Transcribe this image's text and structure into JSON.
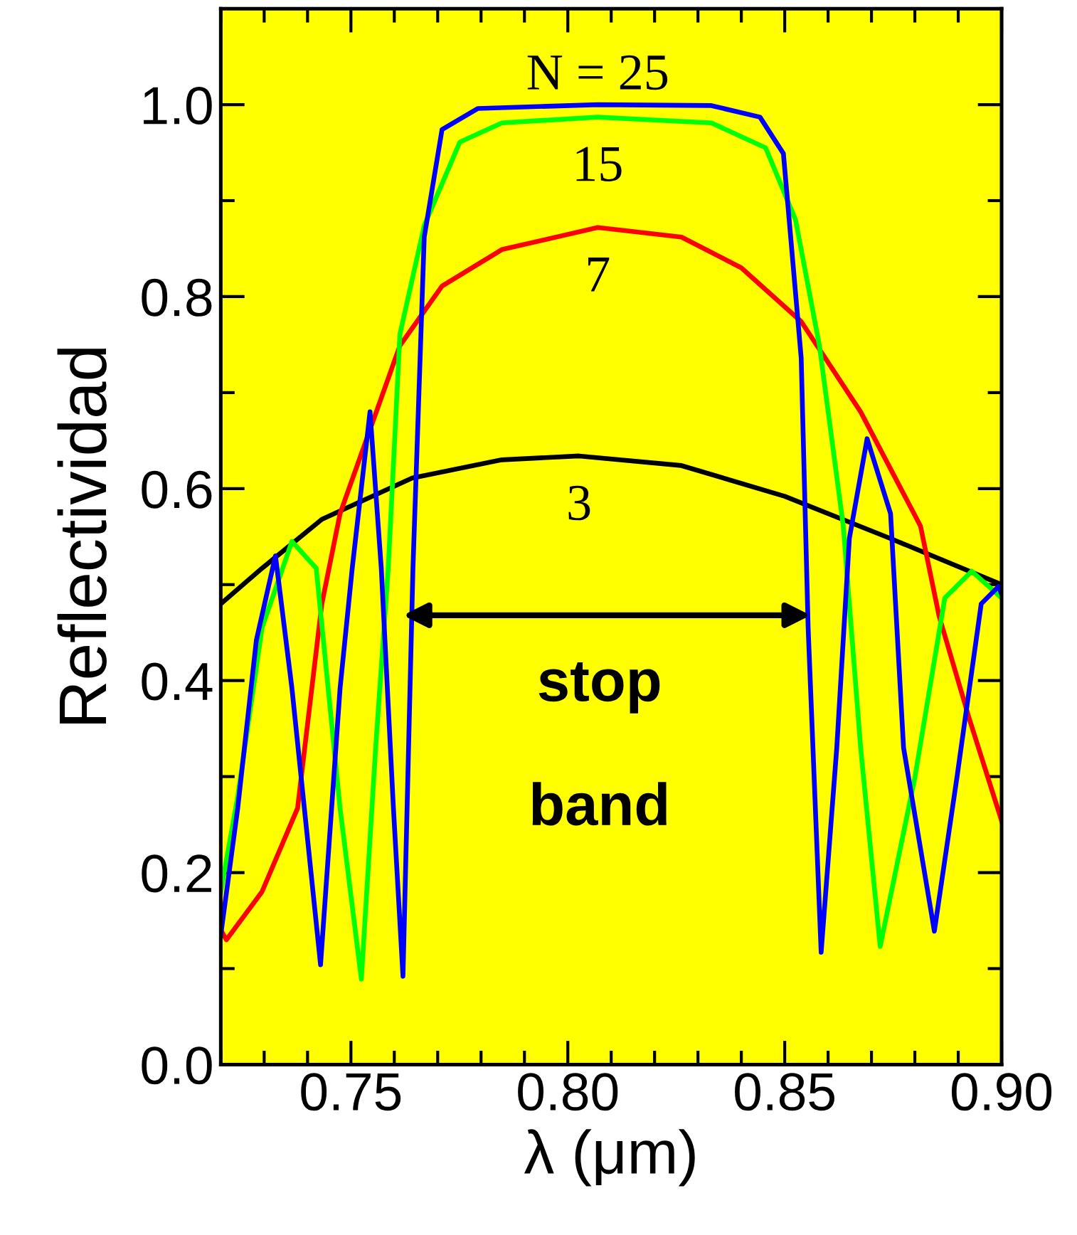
{
  "chart_data": {
    "type": "line",
    "xlabel": "λ (μm)",
    "ylabel": "Reflectividad",
    "xlim": [
      0.72,
      0.9
    ],
    "ylim": [
      0,
      1.1
    ],
    "xticks": [
      {
        "value": 0.72,
        "label": null
      },
      {
        "value": 0.73,
        "label": null
      },
      {
        "value": 0.74,
        "label": null
      },
      {
        "value": 0.75,
        "label": "0.75"
      },
      {
        "value": 0.76,
        "label": null
      },
      {
        "value": 0.77,
        "label": null
      },
      {
        "value": 0.78,
        "label": null
      },
      {
        "value": 0.79,
        "label": null
      },
      {
        "value": 0.8,
        "label": "0.80"
      },
      {
        "value": 0.81,
        "label": null
      },
      {
        "value": 0.82,
        "label": null
      },
      {
        "value": 0.83,
        "label": null
      },
      {
        "value": 0.84,
        "label": null
      },
      {
        "value": 0.85,
        "label": "0.85"
      },
      {
        "value": 0.86,
        "label": null
      },
      {
        "value": 0.87,
        "label": null
      },
      {
        "value": 0.88,
        "label": null
      },
      {
        "value": 0.89,
        "label": null
      },
      {
        "value": 0.9,
        "label": "0.90"
      }
    ],
    "yticks": [
      {
        "value": 0,
        "label": "0.0"
      },
      {
        "value": 0.1,
        "label": null
      },
      {
        "value": 0.2,
        "label": "0.2"
      },
      {
        "value": 0.3,
        "label": null
      },
      {
        "value": 0.4,
        "label": "0.4"
      },
      {
        "value": 0.5,
        "label": null
      },
      {
        "value": 0.6,
        "label": "0.6"
      },
      {
        "value": 0.7,
        "label": null
      },
      {
        "value": 0.8,
        "label": "0.8"
      },
      {
        "value": 0.9,
        "label": null
      },
      {
        "value": 1.0,
        "label": "1.0"
      }
    ],
    "grid": false,
    "legend": false,
    "series": [
      {
        "color": "#000000",
        "x": [
          0.72,
          0.7295,
          0.7433,
          0.7641,
          0.7848,
          0.8026,
          0.8262,
          0.85,
          0.8744,
          0.9
        ],
        "values": [
          0.48,
          0.517,
          0.568,
          0.611,
          0.63,
          0.634,
          0.624,
          0.592,
          0.548,
          0.5
        ]
      },
      {
        "color": "#ff0000",
        "x": [
          0.72,
          0.7213,
          0.7295,
          0.7377,
          0.7433,
          0.7475,
          0.7613,
          0.771,
          0.7848,
          0.8069,
          0.8262,
          0.84,
          0.8538,
          0.8675,
          0.8813,
          0.8856,
          0.8925,
          0.9
        ],
        "values": [
          0.14,
          0.13,
          0.18,
          0.267,
          0.48,
          0.574,
          0.749,
          0.811,
          0.849,
          0.872,
          0.862,
          0.83,
          0.774,
          0.68,
          0.561,
          0.467,
          0.361,
          0.254
        ]
      },
      {
        "color": "#00ff00",
        "x": [
          0.72,
          0.7239,
          0.7295,
          0.7364,
          0.742,
          0.7475,
          0.7524,
          0.7557,
          0.7586,
          0.7613,
          0.7669,
          0.7751,
          0.7848,
          0.8069,
          0.8331,
          0.8456,
          0.8525,
          0.858,
          0.8635,
          0.8675,
          0.872,
          0.88,
          0.8869,
          0.8931,
          0.9
        ],
        "values": [
          0.18,
          0.279,
          0.455,
          0.545,
          0.517,
          0.267,
          0.089,
          0.33,
          0.517,
          0.761,
          0.874,
          0.961,
          0.981,
          0.987,
          0.981,
          0.955,
          0.88,
          0.749,
          0.561,
          0.33,
          0.123,
          0.299,
          0.486,
          0.514,
          0.486
        ]
      },
      {
        "color": "#0000ff",
        "x": [
          0.72,
          0.7239,
          0.7282,
          0.7326,
          0.7364,
          0.743,
          0.7475,
          0.7503,
          0.7544,
          0.757,
          0.7598,
          0.762,
          0.7643,
          0.7669,
          0.771,
          0.7793,
          0.8069,
          0.8331,
          0.8443,
          0.8497,
          0.8538,
          0.8554,
          0.8584,
          0.862,
          0.8649,
          0.869,
          0.8744,
          0.8774,
          0.8845,
          0.8897,
          0.8953,
          0.8993,
          0.9
        ],
        "values": [
          0.135,
          0.267,
          0.442,
          0.53,
          0.392,
          0.104,
          0.392,
          0.517,
          0.68,
          0.517,
          0.267,
          0.092,
          0.517,
          0.862,
          0.974,
          0.996,
          1.0,
          0.999,
          0.987,
          0.949,
          0.736,
          0.455,
          0.117,
          0.33,
          0.548,
          0.652,
          0.574,
          0.33,
          0.139,
          0.299,
          0.48,
          0.498,
          0.49
        ]
      }
    ],
    "annotations": [
      "3",
      "7",
      "15",
      "N = 25",
      "stop band"
    ]
  }
}
